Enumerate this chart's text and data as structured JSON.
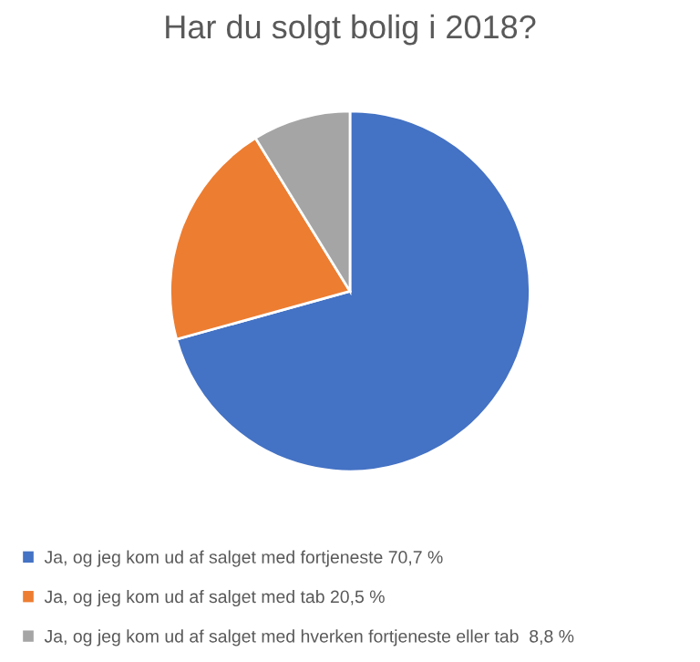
{
  "chart_data": {
    "type": "pie",
    "title": "Har du solgt bolig i 2018?",
    "categories": [
      "Ja, og jeg kom ud af salget med fortjeneste 70,7 %",
      "Ja, og jeg kom ud af salget med tab 20,5 %",
      "Ja, og jeg kom ud af salget med hverken fortjeneste eller tab  8,8 %"
    ],
    "values": [
      70.7,
      20.5,
      8.8
    ],
    "colors": [
      "#4472c4",
      "#ed7d31",
      "#a5a5a5"
    ],
    "legend": "bottom"
  }
}
